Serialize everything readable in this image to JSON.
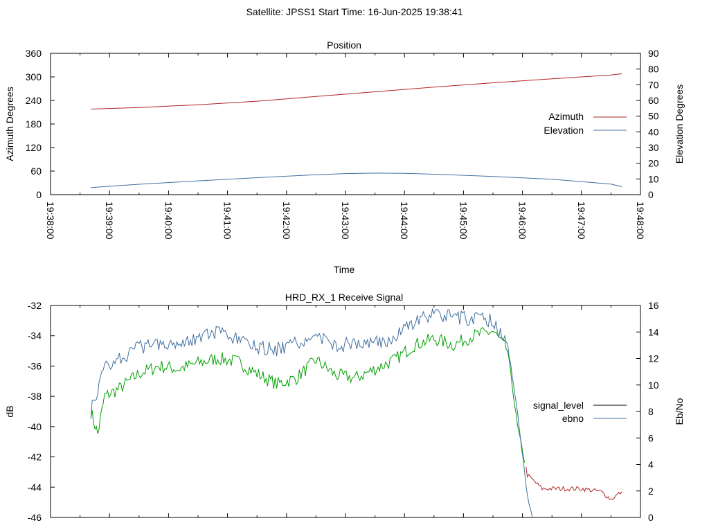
{
  "suptitle": "Satellite: JPSS1     Start Time: 16-Jun-2025 19:38:41",
  "chart_data": [
    {
      "type": "line",
      "title": "Position",
      "xlabel": "Time",
      "ylabel": "Azimuth Degrees",
      "y2label": "Elevation Degrees",
      "xlim": [
        "19:38:00",
        "19:48:00"
      ],
      "x_ticks": [
        "19:38:00",
        "19:39:00",
        "19:40:00",
        "19:41:00",
        "19:42:00",
        "19:43:00",
        "19:44:00",
        "19:45:00",
        "19:46:00",
        "19:47:00",
        "19:48:00"
      ],
      "ylim": [
        0,
        360
      ],
      "y_ticks": [
        0,
        60,
        120,
        180,
        240,
        300,
        360
      ],
      "y2lim": [
        0,
        90
      ],
      "y2_ticks": [
        0,
        10,
        20,
        30,
        40,
        50,
        60,
        70,
        80,
        90
      ],
      "grid": false,
      "legend_position": "right",
      "series": [
        {
          "name": "Azimuth",
          "axis": "y",
          "color": "#b22222",
          "x": [
            "19:38:41",
            "19:39:30",
            "19:40:30",
            "19:41:30",
            "19:42:30",
            "19:43:30",
            "19:44:30",
            "19:45:30",
            "19:46:30",
            "19:47:30",
            "19:47:41"
          ],
          "values": [
            218,
            222,
            229,
            238,
            250,
            262,
            274,
            285,
            295,
            305,
            308
          ]
        },
        {
          "name": "Elevation",
          "axis": "y2",
          "color": "#3f6f9f",
          "x": [
            "19:38:41",
            "19:39:30",
            "19:40:30",
            "19:41:30",
            "19:42:30",
            "19:43:00",
            "19:43:30",
            "19:44:00",
            "19:44:30",
            "19:45:30",
            "19:46:30",
            "19:47:30",
            "19:47:41"
          ],
          "values": [
            4.5,
            6.6,
            8.8,
            10.8,
            12.7,
            13.4,
            13.7,
            13.6,
            13.0,
            11.6,
            9.8,
            6.7,
            5.1
          ]
        }
      ]
    },
    {
      "type": "line",
      "title": "HRD_RX_1 Receive Signal",
      "xlabel": "",
      "ylabel": "dB",
      "y2label": "Eb/No",
      "xlim": [
        "19:38:00",
        "19:48:00"
      ],
      "ylim": [
        -46,
        -32
      ],
      "y_ticks": [
        -46,
        -44,
        -42,
        -40,
        -38,
        -36,
        -34,
        -32
      ],
      "y2lim": [
        0,
        16
      ],
      "y2_ticks": [
        0,
        2,
        4,
        6,
        8,
        10,
        12,
        14,
        16
      ],
      "grid": false,
      "legend_position": "right",
      "series": [
        {
          "name": "signal_level",
          "axis": "y",
          "color": "#00a000",
          "after_fade_color": "#b22222",
          "x": [
            "19:38:41",
            "19:38:48",
            "19:38:55",
            "19:39:10",
            "19:39:30",
            "19:39:50",
            "19:40:10",
            "19:40:30",
            "19:40:50",
            "19:41:10",
            "19:41:30",
            "19:41:50",
            "19:42:10",
            "19:42:30",
            "19:42:50",
            "19:43:10",
            "19:43:30",
            "19:43:50",
            "19:44:10",
            "19:44:30",
            "19:44:50",
            "19:45:10",
            "19:45:30",
            "19:45:45",
            "19:45:55",
            "19:46:05",
            "19:46:20",
            "19:46:40",
            "19:47:00",
            "19:47:20",
            "19:47:30",
            "19:47:41"
          ],
          "values": [
            -39.0,
            -40.5,
            -38.0,
            -37.5,
            -36.5,
            -36.0,
            -36.2,
            -35.8,
            -35.5,
            -35.7,
            -36.5,
            -37.2,
            -36.8,
            -35.6,
            -36.6,
            -36.8,
            -36.2,
            -35.6,
            -34.6,
            -34.2,
            -34.6,
            -34.0,
            -33.7,
            -35.0,
            -40.0,
            -43.2,
            -44.1,
            -44.1,
            -44.1,
            -44.3,
            -44.8,
            -44.3
          ]
        },
        {
          "name": "ebno",
          "axis": "y2",
          "color": "#3f6f9f",
          "x": [
            "19:38:41",
            "19:38:48",
            "19:38:55",
            "19:39:10",
            "19:39:30",
            "19:39:50",
            "19:40:10",
            "19:40:30",
            "19:40:50",
            "19:41:10",
            "19:41:30",
            "19:41:50",
            "19:42:10",
            "19:42:30",
            "19:42:50",
            "19:43:10",
            "19:43:30",
            "19:43:50",
            "19:44:10",
            "19:44:30",
            "19:44:50",
            "19:45:10",
            "19:45:30",
            "19:45:45",
            "19:45:55",
            "19:46:05",
            "19:46:10"
          ],
          "values": [
            8.0,
            9.5,
            11.5,
            12.0,
            12.8,
            13.2,
            13.2,
            13.6,
            13.9,
            13.4,
            12.8,
            12.7,
            13.1,
            13.7,
            13.0,
            13.1,
            13.2,
            13.5,
            14.8,
            15.3,
            15.1,
            15.0,
            14.9,
            13.0,
            8.0,
            1.5,
            0.0
          ]
        }
      ]
    }
  ]
}
